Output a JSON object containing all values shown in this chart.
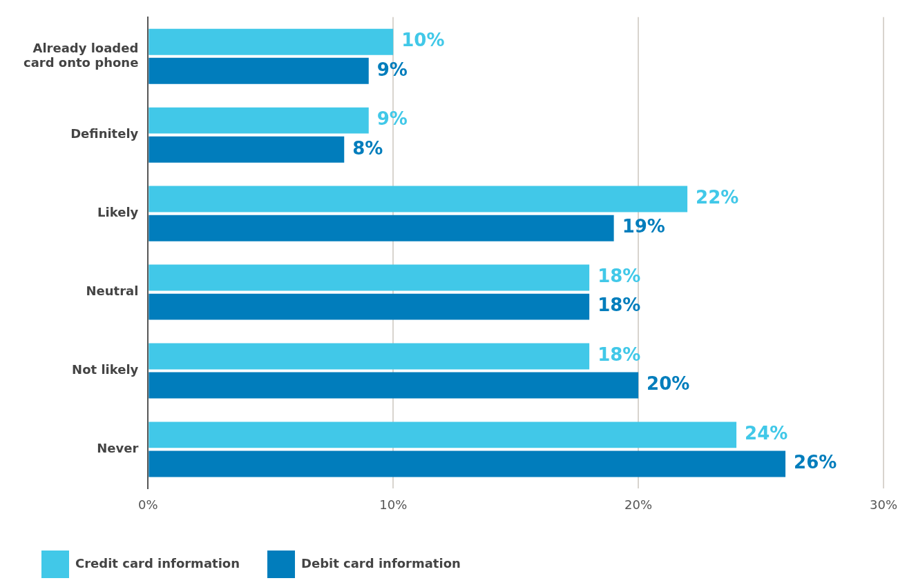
{
  "chart_data": {
    "type": "bar",
    "orientation": "horizontal",
    "categories": [
      "Already loaded\ncard onto phone",
      "Definitely",
      "Likely",
      "Neutral",
      "Not likely",
      "Never"
    ],
    "series": [
      {
        "name": "Credit card information",
        "color": "#41c8e8",
        "values": [
          10,
          9,
          22,
          18,
          18,
          24
        ],
        "value_labels": [
          "10%",
          "9%",
          "22%",
          "18%",
          "18%",
          "24%"
        ]
      },
      {
        "name": "Debit card information",
        "color": "#017dbc",
        "values": [
          9,
          8,
          19,
          18,
          20,
          26
        ],
        "value_labels": [
          "9%",
          "8%",
          "19%",
          "18%",
          "20%",
          "26%"
        ]
      }
    ],
    "xlim": [
      0,
      30
    ],
    "xticks": [
      {
        "value": 0,
        "label": "0%"
      },
      {
        "value": 10,
        "label": "10%"
      },
      {
        "value": 20,
        "label": "20%"
      },
      {
        "value": 30,
        "label": "30%"
      }
    ],
    "grid": "x",
    "legend": "bottom left"
  }
}
